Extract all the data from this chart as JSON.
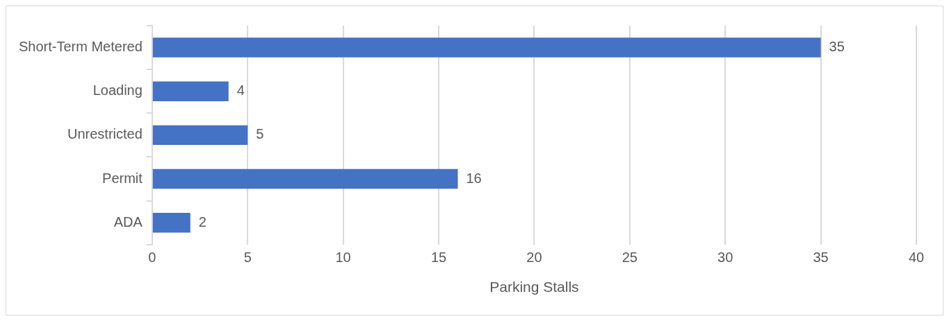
{
  "chart_data": {
    "type": "bar",
    "orientation": "horizontal",
    "categories": [
      "Short-Term Metered",
      "Loading",
      "Unrestricted",
      "Permit",
      "ADA"
    ],
    "values": [
      35,
      4,
      5,
      16,
      2
    ],
    "color": "#4472c4",
    "xlabel": "Parking Stalls",
    "xlim": [
      0,
      40
    ],
    "xticks": [
      0,
      5,
      10,
      15,
      20,
      25,
      30,
      35,
      40
    ],
    "grid": "x",
    "data_labels": true,
    "legend": false
  }
}
